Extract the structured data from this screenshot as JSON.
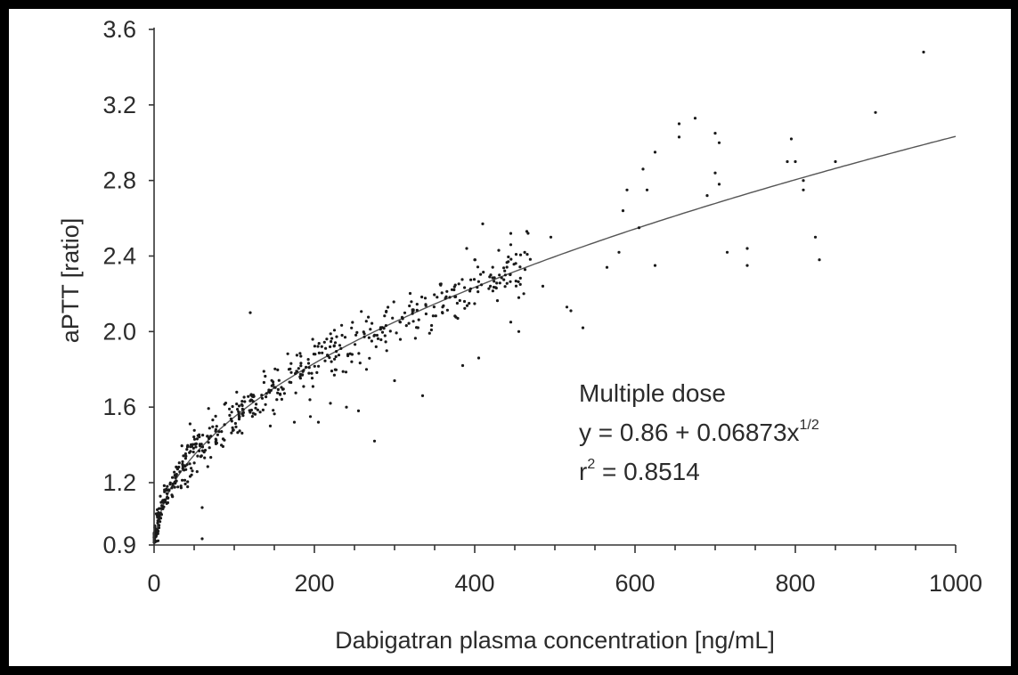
{
  "chart_data": {
    "type": "scatter",
    "xlabel": "Dabigatran plasma concentration [ng/mL]",
    "ylabel": "aPTT [ratio]",
    "xlim": [
      0,
      1000
    ],
    "ylim": [
      0.9,
      3.6
    ],
    "x_ticks": [
      0,
      200,
      400,
      600,
      800,
      1000
    ],
    "x_minor_step": 50,
    "y_ticks": [
      0.9,
      1.2,
      1.6,
      2.0,
      2.4,
      2.8,
      3.2,
      3.6
    ],
    "y_tick_labels": [
      "0.9",
      "1.2",
      "1.6",
      "2.0",
      "2.4",
      "2.8",
      "3.2",
      "3.6"
    ],
    "grid": false,
    "annotation": {
      "line1": "Multiple dose",
      "line2_prefix": "y  = 0.86 + 0.06873x",
      "line2_exponent": "1/2",
      "line3_prefix": "r",
      "line3_exponent": "2",
      "line3_suffix": " = 0.8514"
    },
    "fit": {
      "intercept": 0.86,
      "coefficient": 0.06873,
      "power": 0.5,
      "r_squared": 0.8514
    },
    "dense_cloud": {
      "count": 560,
      "x_range": [
        0,
        470
      ],
      "distribution": "x ~ 470 * u^1.8",
      "residual_sd": 0.09
    },
    "points": [
      [
        960,
        3.48
      ],
      [
        900,
        3.16
      ],
      [
        655,
        3.1
      ],
      [
        675,
        3.13
      ],
      [
        655,
        3.03
      ],
      [
        700,
        3.05
      ],
      [
        705,
        3.0
      ],
      [
        625,
        2.95
      ],
      [
        610,
        2.86
      ],
      [
        795,
        3.02
      ],
      [
        790,
        2.9
      ],
      [
        800,
        2.9
      ],
      [
        850,
        2.9
      ],
      [
        810,
        2.8
      ],
      [
        810,
        2.75
      ],
      [
        700,
        2.84
      ],
      [
        705,
        2.78
      ],
      [
        690,
        2.72
      ],
      [
        590,
        2.75
      ],
      [
        615,
        2.75
      ],
      [
        585,
        2.64
      ],
      [
        605,
        2.55
      ],
      [
        580,
        2.42
      ],
      [
        625,
        2.35
      ],
      [
        565,
        2.34
      ],
      [
        715,
        2.42
      ],
      [
        740,
        2.44
      ],
      [
        740,
        2.35
      ],
      [
        825,
        2.5
      ],
      [
        830,
        2.38
      ],
      [
        495,
        2.5
      ],
      [
        465,
        2.53
      ],
      [
        445,
        2.52
      ],
      [
        410,
        2.57
      ],
      [
        445,
        2.46
      ],
      [
        430,
        2.43
      ],
      [
        390,
        2.44
      ],
      [
        400,
        2.38
      ],
      [
        420,
        2.3
      ],
      [
        455,
        2.18
      ],
      [
        485,
        2.24
      ],
      [
        515,
        2.13
      ],
      [
        520,
        2.11
      ],
      [
        535,
        2.02
      ],
      [
        405,
        1.86
      ],
      [
        385,
        1.82
      ],
      [
        455,
        2.0
      ],
      [
        445,
        2.05
      ],
      [
        335,
        1.66
      ],
      [
        300,
        1.74
      ],
      [
        275,
        1.42
      ],
      [
        265,
        1.8
      ],
      [
        240,
        1.6
      ],
      [
        255,
        1.58
      ],
      [
        220,
        1.62
      ],
      [
        205,
        1.52
      ],
      [
        195,
        1.55
      ],
      [
        175,
        1.52
      ],
      [
        145,
        1.5
      ],
      [
        120,
        2.1
      ],
      [
        60,
        1.08
      ],
      [
        60,
        0.93
      ],
      [
        5,
        0.92
      ],
      [
        3,
        0.95
      ]
    ]
  }
}
